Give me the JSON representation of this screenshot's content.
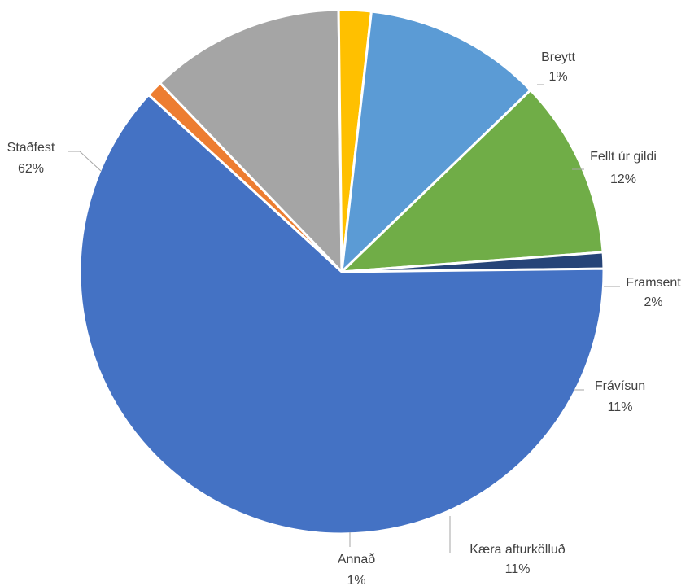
{
  "chart_data": {
    "type": "pie",
    "title": "",
    "slices": [
      {
        "label": "Breytt",
        "value": 1,
        "value_label": "1%",
        "color": "#ED7D31"
      },
      {
        "label": "Fellt úr gildi",
        "value": 12,
        "value_label": "12%",
        "color": "#A5A5A5"
      },
      {
        "label": "Framsent",
        "value": 2,
        "value_label": "2%",
        "color": "#FFC000"
      },
      {
        "label": "Frávísun",
        "value": 11,
        "value_label": "11%",
        "color": "#5B9BD5"
      },
      {
        "label": "Kæra afturkölluð",
        "value": 11,
        "value_label": "11%",
        "color": "#70AD47"
      },
      {
        "label": "Annað",
        "value": 1,
        "value_label": "1%",
        "color": "#264478"
      },
      {
        "label": "Staðfest",
        "value": 62,
        "value_label": "62%",
        "color": "#4472C4"
      }
    ],
    "legend": "none",
    "data_labels": "outside with leader lines"
  }
}
